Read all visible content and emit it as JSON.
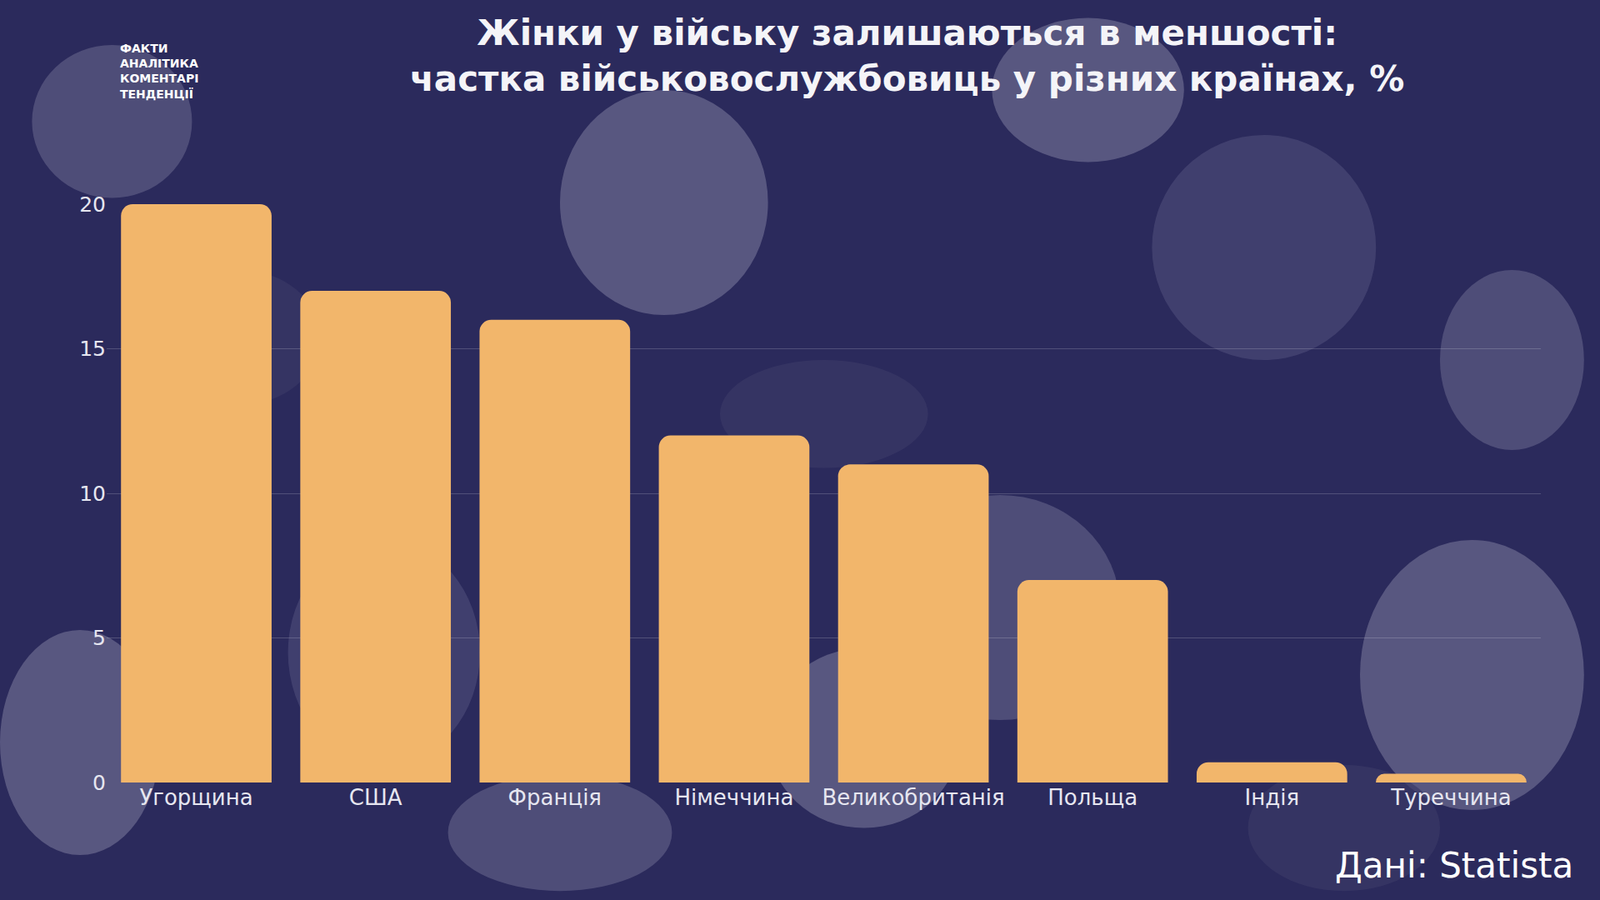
{
  "chart_data": {
    "type": "bar",
    "title": "Жінки у війську залишаються в меншості:\nчастка військовослужбовиць у різних країнах, %",
    "categories": [
      "Угорщина",
      "США",
      "Франція",
      "Німеччина",
      "Великобританія",
      "Польща",
      "Індія",
      "Туреччина"
    ],
    "values": [
      20,
      17,
      16,
      12,
      11,
      7,
      0.7,
      0.3
    ],
    "color": "#f2b66b",
    "ylim": [
      0,
      20
    ],
    "yticks": [
      0,
      5,
      10,
      15,
      20
    ],
    "grid": true,
    "source": "Дані: Statista",
    "logo_text": [
      "ФАКТИ",
      "АНАЛІТИКА",
      "КОМЕНТАРІ",
      "ТЕНДЕНЦІЇ"
    ]
  }
}
